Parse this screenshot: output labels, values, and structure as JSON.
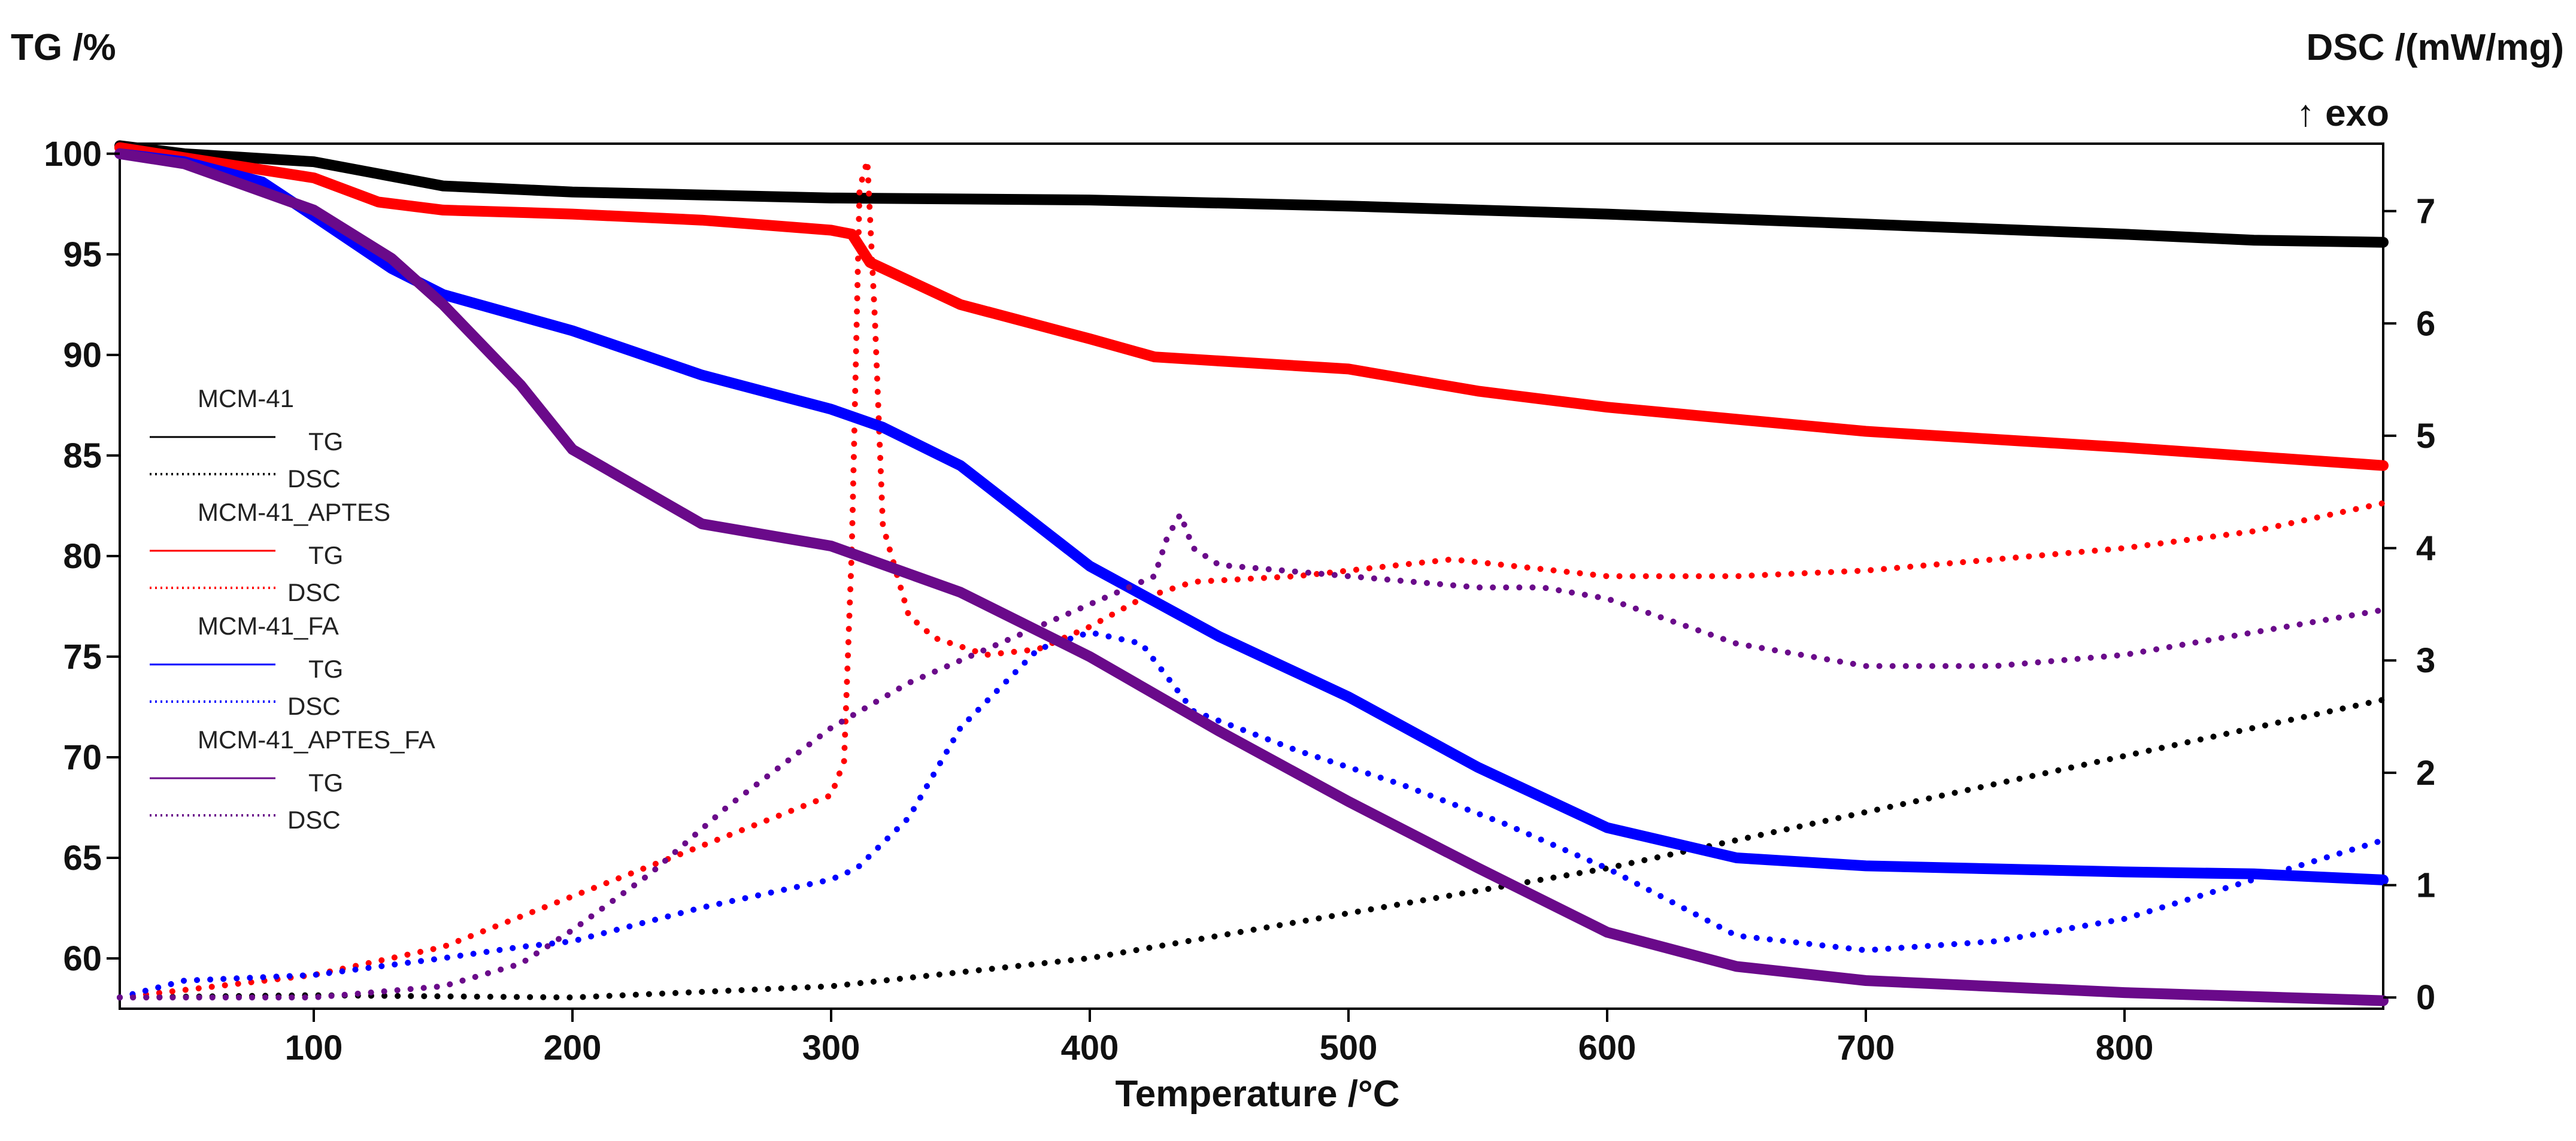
{
  "chart_data": {
    "type": "line",
    "title": "",
    "xlabel": "Temperature /°C",
    "ylabel_left": "TG /%",
    "ylabel_right": "DSC /(mW/mg)",
    "ylabel_right_note": "↑ exo",
    "xlim": [
      25,
      900
    ],
    "ylim_left": [
      57.5,
      100.5
    ],
    "ylim_right": [
      -0.1,
      7.6
    ],
    "x_ticks": [
      100,
      200,
      300,
      400,
      500,
      600,
      700,
      800
    ],
    "y_left_ticks": [
      60,
      65,
      70,
      75,
      80,
      85,
      90,
      95,
      100
    ],
    "y_right_ticks": [
      0,
      1,
      2,
      3,
      4,
      5,
      6,
      7
    ],
    "grid": false,
    "legend_position": "middle-left",
    "legend": [
      {
        "sample": "MCM-41",
        "tg_label": "TG",
        "dsc_label": "DSC",
        "color": "#000000"
      },
      {
        "sample": "MCM-41_APTES",
        "tg_label": "TG",
        "dsc_label": "DSC",
        "color": "#ff0000"
      },
      {
        "sample": "MCM-41_FA",
        "tg_label": "TG",
        "dsc_label": "DSC",
        "color": "#0000ff"
      },
      {
        "sample": "MCM-41_APTES_FA",
        "tg_label": "TG",
        "dsc_label": "DSC",
        "color": "#6a0a8a"
      }
    ],
    "series": [
      {
        "name": "MCM-41 TG",
        "axis": "left",
        "style": "solid",
        "color": "#000000",
        "x": [
          25,
          50,
          100,
          150,
          200,
          300,
          400,
          500,
          600,
          700,
          800,
          850,
          900
        ],
        "y": [
          100.4,
          100.0,
          99.6,
          98.4,
          98.1,
          97.8,
          97.7,
          97.4,
          97.0,
          96.5,
          96.0,
          95.7,
          95.6
        ]
      },
      {
        "name": "MCM-41 DSC",
        "axis": "right",
        "style": "dotted",
        "color": "#000000",
        "x": [
          25,
          100,
          200,
          300,
          400,
          500,
          600,
          700,
          800,
          900
        ],
        "y": [
          0.0,
          0.02,
          0.0,
          0.1,
          0.35,
          0.75,
          1.15,
          1.65,
          2.15,
          2.65
        ]
      },
      {
        "name": "MCM-41_APTES TG",
        "axis": "left",
        "style": "solid",
        "color": "#ff0000",
        "x": [
          25,
          50,
          100,
          125,
          150,
          200,
          250,
          300,
          308,
          315,
          350,
          400,
          425,
          500,
          550,
          600,
          700,
          800,
          900
        ],
        "y": [
          100.3,
          99.8,
          98.8,
          97.6,
          97.2,
          97.0,
          96.7,
          96.2,
          96.0,
          94.6,
          92.5,
          90.8,
          89.9,
          89.3,
          88.2,
          87.4,
          86.2,
          85.4,
          84.5
        ]
      },
      {
        "name": "MCM-41_APTES DSC",
        "axis": "right",
        "style": "dotted",
        "color": "#ff0000",
        "x": [
          25,
          100,
          150,
          200,
          250,
          300,
          305,
          308,
          311,
          314,
          317,
          320,
          325,
          330,
          340,
          360,
          380,
          400,
          420,
          440,
          480,
          520,
          540,
          560,
          600,
          650,
          700,
          750,
          800,
          850,
          900
        ],
        "y": [
          0.0,
          0.2,
          0.45,
          0.9,
          1.35,
          1.8,
          2.1,
          4.0,
          7.2,
          7.45,
          6.0,
          4.2,
          3.8,
          3.4,
          3.2,
          3.05,
          3.1,
          3.3,
          3.55,
          3.7,
          3.75,
          3.85,
          3.9,
          3.85,
          3.75,
          3.75,
          3.8,
          3.9,
          4.0,
          4.15,
          4.4
        ]
      },
      {
        "name": "MCM-41_FA TG",
        "axis": "left",
        "style": "solid",
        "color": "#0000ff",
        "x": [
          25,
          50,
          80,
          100,
          130,
          150,
          200,
          250,
          300,
          320,
          350,
          400,
          450,
          500,
          550,
          600,
          650,
          700,
          800,
          850,
          900
        ],
        "y": [
          100.0,
          99.6,
          98.6,
          96.9,
          94.3,
          93.0,
          91.2,
          89.0,
          87.3,
          86.4,
          84.5,
          79.5,
          76.0,
          73.0,
          69.5,
          66.5,
          65.0,
          64.6,
          64.3,
          64.2,
          63.9
        ]
      },
      {
        "name": "MCM-41_FA DSC",
        "axis": "right",
        "style": "dotted",
        "color": "#0000ff",
        "x": [
          25,
          50,
          100,
          150,
          180,
          200,
          250,
          300,
          310,
          330,
          350,
          380,
          400,
          420,
          440,
          480,
          520,
          560,
          600,
          650,
          700,
          750,
          800,
          850,
          900
        ],
        "y": [
          0.0,
          0.15,
          0.2,
          0.35,
          0.45,
          0.5,
          0.8,
          1.05,
          1.15,
          1.6,
          2.4,
          3.1,
          3.25,
          3.15,
          2.55,
          2.2,
          1.9,
          1.55,
          1.15,
          0.55,
          0.42,
          0.5,
          0.7,
          1.05,
          1.4
        ]
      },
      {
        "name": "MCM-41_APTES_FA TG",
        "axis": "left",
        "style": "solid",
        "color": "#6a0a8a",
        "x": [
          25,
          50,
          100,
          130,
          150,
          180,
          200,
          250,
          300,
          350,
          400,
          450,
          500,
          550,
          600,
          650,
          700,
          750,
          800,
          850,
          900
        ],
        "y": [
          100.0,
          99.5,
          97.2,
          94.8,
          92.5,
          88.5,
          85.3,
          81.6,
          80.5,
          78.2,
          75.0,
          71.3,
          67.8,
          64.5,
          61.3,
          59.6,
          58.9,
          58.6,
          58.3,
          58.1,
          57.9
        ]
      },
      {
        "name": "MCM-41_APTES_FA DSC",
        "axis": "right",
        "style": "dotted",
        "color": "#6a0a8a",
        "x": [
          25,
          100,
          150,
          180,
          200,
          230,
          260,
          300,
          330,
          360,
          390,
          415,
          425,
          430,
          435,
          440,
          450,
          500,
          550,
          575,
          600,
          650,
          700,
          750,
          800,
          850,
          900
        ],
        "y": [
          0.0,
          0.0,
          0.1,
          0.3,
          0.6,
          1.1,
          1.7,
          2.4,
          2.8,
          3.1,
          3.4,
          3.65,
          3.75,
          4.1,
          4.3,
          4.0,
          3.85,
          3.75,
          3.65,
          3.65,
          3.55,
          3.15,
          2.95,
          2.95,
          3.05,
          3.25,
          3.45
        ]
      }
    ]
  }
}
